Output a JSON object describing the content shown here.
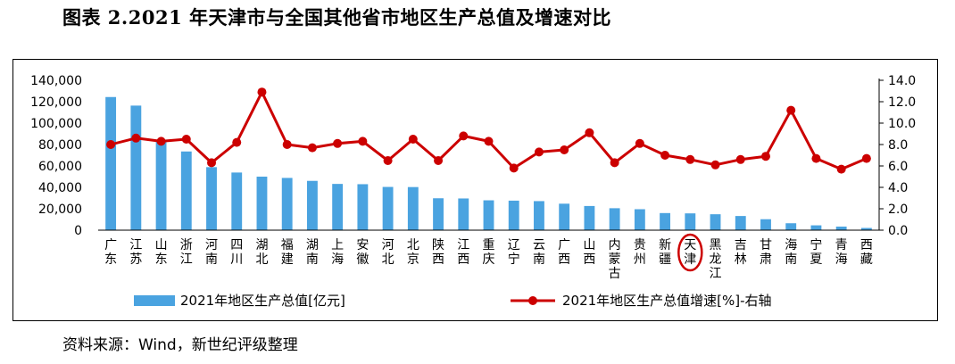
{
  "title": "图表 2.2021 年天津市与全国其他省市地区生产总值及增速对比",
  "source": "资料来源：Wind，新世纪评级整理",
  "colors": {
    "bar": "#4aa3e0",
    "line": "#cc0000",
    "highlight_circle": "#cc0000"
  },
  "chart_data": {
    "type": "bar",
    "categories": [
      "广东",
      "江苏",
      "山东",
      "浙江",
      "河南",
      "四川",
      "湖北",
      "福建",
      "湖南",
      "上海",
      "安徽",
      "河北",
      "北京",
      "陕西",
      "江西",
      "重庆",
      "辽宁",
      "云南",
      "广西",
      "山西",
      "内蒙古",
      "贵州",
      "新疆",
      "天津",
      "黑龙江",
      "吉林",
      "甘肃",
      "海南",
      "宁夏",
      "青海",
      "西藏"
    ],
    "highlight_category": "天津",
    "series": [
      {
        "name": "2021年地区生产总值[亿元]",
        "type": "bar",
        "axis": "left",
        "values": [
          124370,
          116364,
          83096,
          73516,
          58887,
          53851,
          50013,
          48810,
          46063,
          43215,
          42959,
          40391,
          40270,
          29801,
          29620,
          27894,
          27584,
          27147,
          24741,
          22590,
          20514,
          19586,
          15984,
          15695,
          14879,
          13236,
          10243,
          6475,
          4522,
          3347,
          2080
        ]
      },
      {
        "name": "2021年地区生产总值增速[%]-右轴",
        "type": "line",
        "axis": "right",
        "values": [
          8.0,
          8.6,
          8.3,
          8.5,
          6.3,
          8.2,
          12.9,
          8.0,
          7.7,
          8.1,
          8.3,
          6.5,
          8.5,
          6.5,
          8.8,
          8.3,
          5.8,
          7.3,
          7.5,
          9.1,
          6.3,
          8.1,
          7.0,
          6.6,
          6.1,
          6.6,
          6.9,
          11.2,
          6.7,
          5.7,
          6.7
        ]
      }
    ],
    "ylim_left": [
      0,
      140000
    ],
    "yticks_left": [
      "0",
      "20,000",
      "40,000",
      "60,000",
      "80,000",
      "100,000",
      "120,000",
      "140,000"
    ],
    "ylim_right": [
      0,
      14.0
    ],
    "yticks_right": [
      "0.0",
      "2.0",
      "4.0",
      "6.0",
      "8.0",
      "10.0",
      "12.0",
      "14.0"
    ],
    "legend_position": "bottom",
    "grid": false
  }
}
